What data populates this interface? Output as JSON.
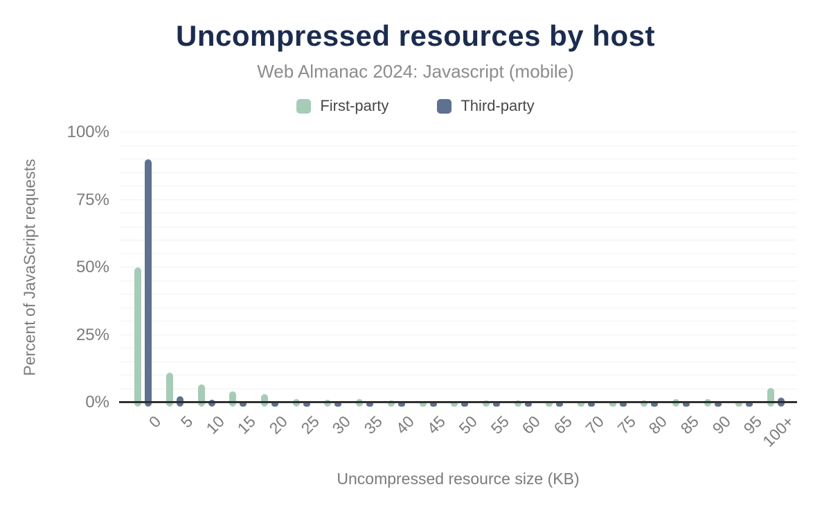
{
  "chart_data": {
    "type": "bar",
    "title": "Uncompressed resources by host",
    "subtitle": "Web Almanac 2024: Javascript (mobile)",
    "xlabel": "Uncompressed resource size (KB)",
    "ylabel": "Percent of JavaScript requests",
    "categories": [
      "0",
      "5",
      "10",
      "15",
      "20",
      "25",
      "30",
      "35",
      "40",
      "45",
      "50",
      "55",
      "60",
      "65",
      "70",
      "75",
      "80",
      "85",
      "90",
      "95",
      "100+"
    ],
    "series": [
      {
        "name": "First-party",
        "color": "#a6ccb8",
        "values": [
          50,
          11,
          6.6,
          4.1,
          3.1,
          1.3,
          1.0,
          1.4,
          0.9,
          0.6,
          0.6,
          0.7,
          0.9,
          0.5,
          0.4,
          0.5,
          0.8,
          1.2,
          1.2,
          0.4,
          5.4
        ]
      },
      {
        "name": "Third-party",
        "color": "#5e7190",
        "values": [
          90,
          2.4,
          1.1,
          0.6,
          0.5,
          0.3,
          0.3,
          0.3,
          0.2,
          0.2,
          0.2,
          0.2,
          0.2,
          0.15,
          0.15,
          0.15,
          0.25,
          0.3,
          0.25,
          0.15,
          1.7
        ]
      }
    ],
    "ylim": [
      0,
      100
    ],
    "yticks": [
      0,
      25,
      50,
      75,
      100
    ],
    "ytick_labels": [
      "0%",
      "25%",
      "50%",
      "75%",
      "100%"
    ],
    "grid_minor_step_pct": 5,
    "legend_position": "top",
    "grid": "minor horizontal lines every 5%, no vertical gridlines"
  },
  "colors": {
    "title": "#1b2c4e",
    "subtitle": "#8c8c8c",
    "axis_text": "#7b7b7b",
    "legend_text": "#474747",
    "gridline": "#f1f1f1",
    "axis_line": "#2f2f2f",
    "background": "#ffffff"
  }
}
